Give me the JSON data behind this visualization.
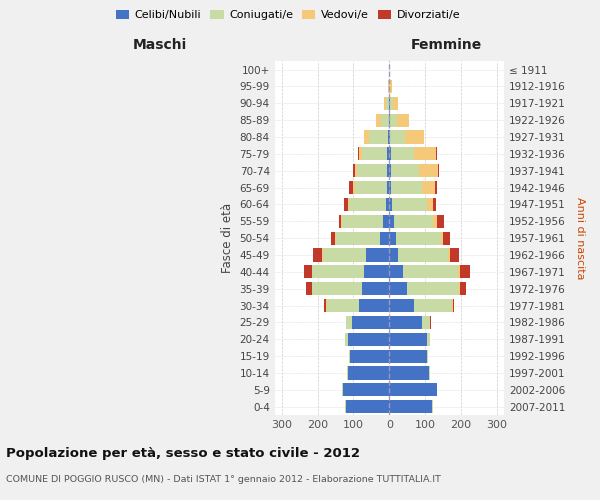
{
  "age_groups": [
    "0-4",
    "5-9",
    "10-14",
    "15-19",
    "20-24",
    "25-29",
    "30-34",
    "35-39",
    "40-44",
    "45-49",
    "50-54",
    "55-59",
    "60-64",
    "65-69",
    "70-74",
    "75-79",
    "80-84",
    "85-89",
    "90-94",
    "95-99",
    "100+"
  ],
  "birth_years": [
    "2007-2011",
    "2002-2006",
    "1997-2001",
    "1992-1996",
    "1987-1991",
    "1982-1986",
    "1977-1981",
    "1972-1976",
    "1967-1971",
    "1962-1966",
    "1957-1961",
    "1952-1956",
    "1947-1951",
    "1942-1946",
    "1937-1941",
    "1932-1936",
    "1927-1931",
    "1922-1926",
    "1917-1921",
    "1912-1916",
    "≤ 1911"
  ],
  "males": {
    "celibi": [
      120,
      130,
      115,
      110,
      115,
      105,
      85,
      75,
      70,
      65,
      25,
      18,
      8,
      7,
      7,
      5,
      4,
      2,
      2,
      0,
      0
    ],
    "coniugati": [
      3,
      2,
      3,
      3,
      8,
      15,
      90,
      140,
      145,
      120,
      125,
      115,
      105,
      90,
      82,
      70,
      52,
      22,
      8,
      2,
      0
    ],
    "vedovi": [
      0,
      0,
      0,
      0,
      0,
      0,
      2,
      2,
      2,
      2,
      2,
      2,
      3,
      5,
      8,
      10,
      14,
      12,
      5,
      2,
      0
    ],
    "divorziati": [
      0,
      0,
      0,
      0,
      0,
      2,
      5,
      15,
      20,
      25,
      12,
      5,
      10,
      10,
      5,
      2,
      0,
      0,
      0,
      0,
      0
    ]
  },
  "females": {
    "nubili": [
      118,
      132,
      110,
      105,
      105,
      90,
      70,
      50,
      38,
      25,
      18,
      12,
      7,
      5,
      5,
      4,
      3,
      2,
      2,
      0,
      0
    ],
    "coniugate": [
      3,
      2,
      3,
      3,
      8,
      25,
      105,
      145,
      155,
      140,
      125,
      110,
      98,
      85,
      78,
      65,
      42,
      20,
      8,
      2,
      0
    ],
    "vedove": [
      0,
      0,
      0,
      0,
      0,
      0,
      2,
      3,
      3,
      5,
      8,
      10,
      18,
      38,
      52,
      62,
      52,
      33,
      14,
      5,
      0
    ],
    "divorziate": [
      0,
      0,
      0,
      0,
      0,
      2,
      5,
      15,
      28,
      25,
      18,
      20,
      8,
      5,
      3,
      2,
      0,
      0,
      0,
      0,
      0
    ]
  },
  "colors": {
    "celibi": "#4472C4",
    "coniugati": "#c8dba4",
    "vedovi": "#f5c87a",
    "divorziati": "#c0392b"
  },
  "xlim": 320,
  "title": "Popolazione per età, sesso e stato civile - 2012",
  "subtitle": "COMUNE DI POGGIO RUSCO (MN) - Dati ISTAT 1° gennaio 2012 - Elaborazione TUTTITALIA.IT",
  "ylabel_left": "Fasce di età",
  "ylabel_right": "Anni di nascita",
  "xlabel_left": "Maschi",
  "xlabel_right": "Femmine",
  "bg_color": "#f0f0f0",
  "plot_bg": "#ffffff",
  "legend_labels": [
    "Celibi/Nubili",
    "Coniugati/e",
    "Vedovi/e",
    "Divorziati/e"
  ]
}
